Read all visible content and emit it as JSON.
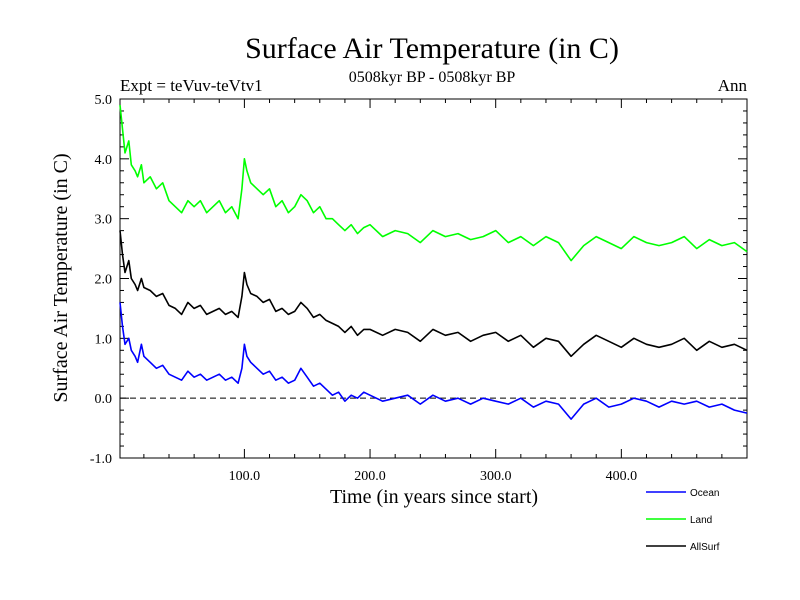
{
  "chart_data": {
    "type": "line",
    "title": "Surface Air Temperature (in C)",
    "subtitle_left": "Expt = teVuv-teVtv1",
    "subtitle_center": "0508kyr BP - 0508kyr BP",
    "subtitle_right": "Ann",
    "xlabel": "Time (in years since start)",
    "ylabel": "Surface Air Temperature (in C)",
    "xlim": [
      1,
      500
    ],
    "ylim": [
      -1.0,
      5.0
    ],
    "x_tick_labels": [
      "100.0",
      "200.0",
      "300.0",
      "400.0"
    ],
    "x_tick_values": [
      100,
      200,
      300,
      400
    ],
    "y_tick_labels": [
      "-1.0",
      "0.0",
      "1.0",
      "2.0",
      "3.0",
      "4.0",
      "5.0"
    ],
    "y_tick_values": [
      -1,
      0,
      1,
      2,
      3,
      4,
      5
    ],
    "zero_line": true,
    "grid": false,
    "legend_position": "bottom-right, below plot",
    "series": [
      {
        "name": "Ocean",
        "color": "#0000ff",
        "x": [
          1,
          3,
          5,
          8,
          10,
          13,
          15,
          18,
          20,
          25,
          30,
          35,
          40,
          45,
          50,
          55,
          60,
          65,
          70,
          75,
          80,
          85,
          90,
          95,
          98,
          100,
          102,
          105,
          110,
          115,
          120,
          125,
          130,
          135,
          140,
          145,
          150,
          155,
          160,
          165,
          170,
          175,
          180,
          185,
          190,
          195,
          200,
          210,
          220,
          230,
          240,
          250,
          260,
          270,
          280,
          290,
          300,
          310,
          320,
          330,
          340,
          350,
          360,
          370,
          380,
          390,
          400,
          410,
          420,
          430,
          440,
          450,
          460,
          470,
          480,
          490,
          500
        ],
        "values": [
          1.6,
          1.2,
          0.9,
          1.0,
          0.8,
          0.7,
          0.6,
          0.9,
          0.7,
          0.6,
          0.5,
          0.55,
          0.4,
          0.35,
          0.3,
          0.45,
          0.35,
          0.4,
          0.3,
          0.35,
          0.4,
          0.3,
          0.35,
          0.25,
          0.5,
          0.9,
          0.7,
          0.6,
          0.5,
          0.4,
          0.45,
          0.3,
          0.35,
          0.25,
          0.3,
          0.5,
          0.35,
          0.2,
          0.25,
          0.15,
          0.05,
          0.1,
          -0.05,
          0.05,
          0.0,
          0.1,
          0.05,
          -0.05,
          0.0,
          0.05,
          -0.1,
          0.05,
          -0.05,
          0.0,
          -0.1,
          0.0,
          -0.05,
          -0.1,
          0.0,
          -0.15,
          -0.05,
          -0.1,
          -0.35,
          -0.1,
          0.0,
          -0.15,
          -0.1,
          0.0,
          -0.05,
          -0.15,
          -0.05,
          -0.1,
          -0.05,
          -0.15,
          -0.1,
          -0.2,
          -0.25
        ]
      },
      {
        "name": "Land",
        "color": "#00ff00",
        "x": [
          1,
          3,
          5,
          8,
          10,
          13,
          15,
          18,
          20,
          25,
          30,
          35,
          40,
          45,
          50,
          55,
          60,
          65,
          70,
          75,
          80,
          85,
          90,
          95,
          98,
          100,
          102,
          105,
          110,
          115,
          120,
          125,
          130,
          135,
          140,
          145,
          150,
          155,
          160,
          165,
          170,
          175,
          180,
          185,
          190,
          195,
          200,
          210,
          220,
          230,
          240,
          250,
          260,
          270,
          280,
          290,
          300,
          310,
          320,
          330,
          340,
          350,
          360,
          370,
          380,
          390,
          400,
          410,
          420,
          430,
          440,
          450,
          460,
          470,
          480,
          490,
          500
        ],
        "values": [
          4.9,
          4.5,
          4.1,
          4.3,
          3.9,
          3.8,
          3.7,
          3.9,
          3.6,
          3.7,
          3.5,
          3.6,
          3.3,
          3.2,
          3.1,
          3.3,
          3.2,
          3.3,
          3.1,
          3.2,
          3.3,
          3.1,
          3.2,
          3.0,
          3.5,
          4.0,
          3.8,
          3.6,
          3.5,
          3.4,
          3.5,
          3.2,
          3.3,
          3.1,
          3.2,
          3.4,
          3.3,
          3.1,
          3.2,
          3.0,
          3.0,
          2.9,
          2.8,
          2.9,
          2.75,
          2.85,
          2.9,
          2.7,
          2.8,
          2.75,
          2.6,
          2.8,
          2.7,
          2.75,
          2.65,
          2.7,
          2.8,
          2.6,
          2.7,
          2.55,
          2.7,
          2.6,
          2.3,
          2.55,
          2.7,
          2.6,
          2.5,
          2.7,
          2.6,
          2.55,
          2.6,
          2.7,
          2.5,
          2.65,
          2.55,
          2.6,
          2.45
        ]
      },
      {
        "name": "AllSurf",
        "color": "#000000",
        "x": [
          1,
          3,
          5,
          8,
          10,
          13,
          15,
          18,
          20,
          25,
          30,
          35,
          40,
          45,
          50,
          55,
          60,
          65,
          70,
          75,
          80,
          85,
          90,
          95,
          98,
          100,
          102,
          105,
          110,
          115,
          120,
          125,
          130,
          135,
          140,
          145,
          150,
          155,
          160,
          165,
          170,
          175,
          180,
          185,
          190,
          195,
          200,
          210,
          220,
          230,
          240,
          250,
          260,
          270,
          280,
          290,
          300,
          310,
          320,
          330,
          340,
          350,
          360,
          370,
          380,
          390,
          400,
          410,
          420,
          430,
          440,
          450,
          460,
          470,
          480,
          490,
          500
        ],
        "values": [
          2.8,
          2.4,
          2.1,
          2.3,
          2.0,
          1.9,
          1.8,
          2.0,
          1.85,
          1.8,
          1.7,
          1.75,
          1.55,
          1.5,
          1.4,
          1.6,
          1.5,
          1.55,
          1.4,
          1.45,
          1.5,
          1.4,
          1.45,
          1.35,
          1.7,
          2.1,
          1.9,
          1.75,
          1.7,
          1.6,
          1.65,
          1.45,
          1.5,
          1.4,
          1.45,
          1.6,
          1.5,
          1.35,
          1.4,
          1.3,
          1.25,
          1.2,
          1.1,
          1.2,
          1.05,
          1.15,
          1.15,
          1.05,
          1.15,
          1.1,
          0.95,
          1.15,
          1.05,
          1.1,
          0.95,
          1.05,
          1.1,
          0.95,
          1.05,
          0.85,
          1.0,
          0.95,
          0.7,
          0.9,
          1.05,
          0.95,
          0.85,
          1.0,
          0.9,
          0.85,
          0.9,
          1.0,
          0.8,
          0.95,
          0.85,
          0.9,
          0.8
        ]
      }
    ]
  }
}
